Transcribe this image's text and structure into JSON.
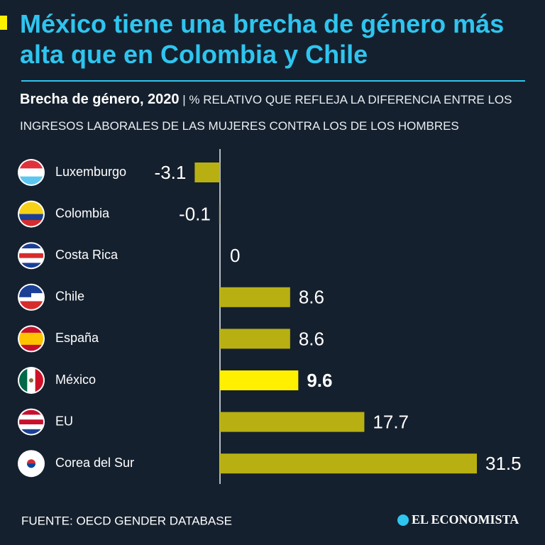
{
  "chart_data": {
    "type": "bar",
    "orientation": "horizontal",
    "title": "México tiene una brecha de género más alta que en Colombia y Chile",
    "subtitle_label": "Brecha de género, 2020",
    "subtitle": "| % RELATIVO QUE REFLEJA LA DIFERENCIA ENTRE LOS INGRESOS LABORALES DE LAS MUJERES CONTRA LOS DE LOS HOMBRES",
    "categories": [
      "Luxemburgo",
      "Colombia",
      "Costa Rica",
      "Chile",
      "España",
      "México",
      "EU",
      "Corea del Sur"
    ],
    "values": [
      -3.1,
      -0.1,
      0,
      8.6,
      8.6,
      9.6,
      17.7,
      31.5
    ],
    "color": "#b8b012",
    "highlight_color": "#fff000",
    "highlight": "México",
    "source": "FUENTE: OECD GENDER DATABASE",
    "logo": "EL ECONOMISTA"
  }
}
